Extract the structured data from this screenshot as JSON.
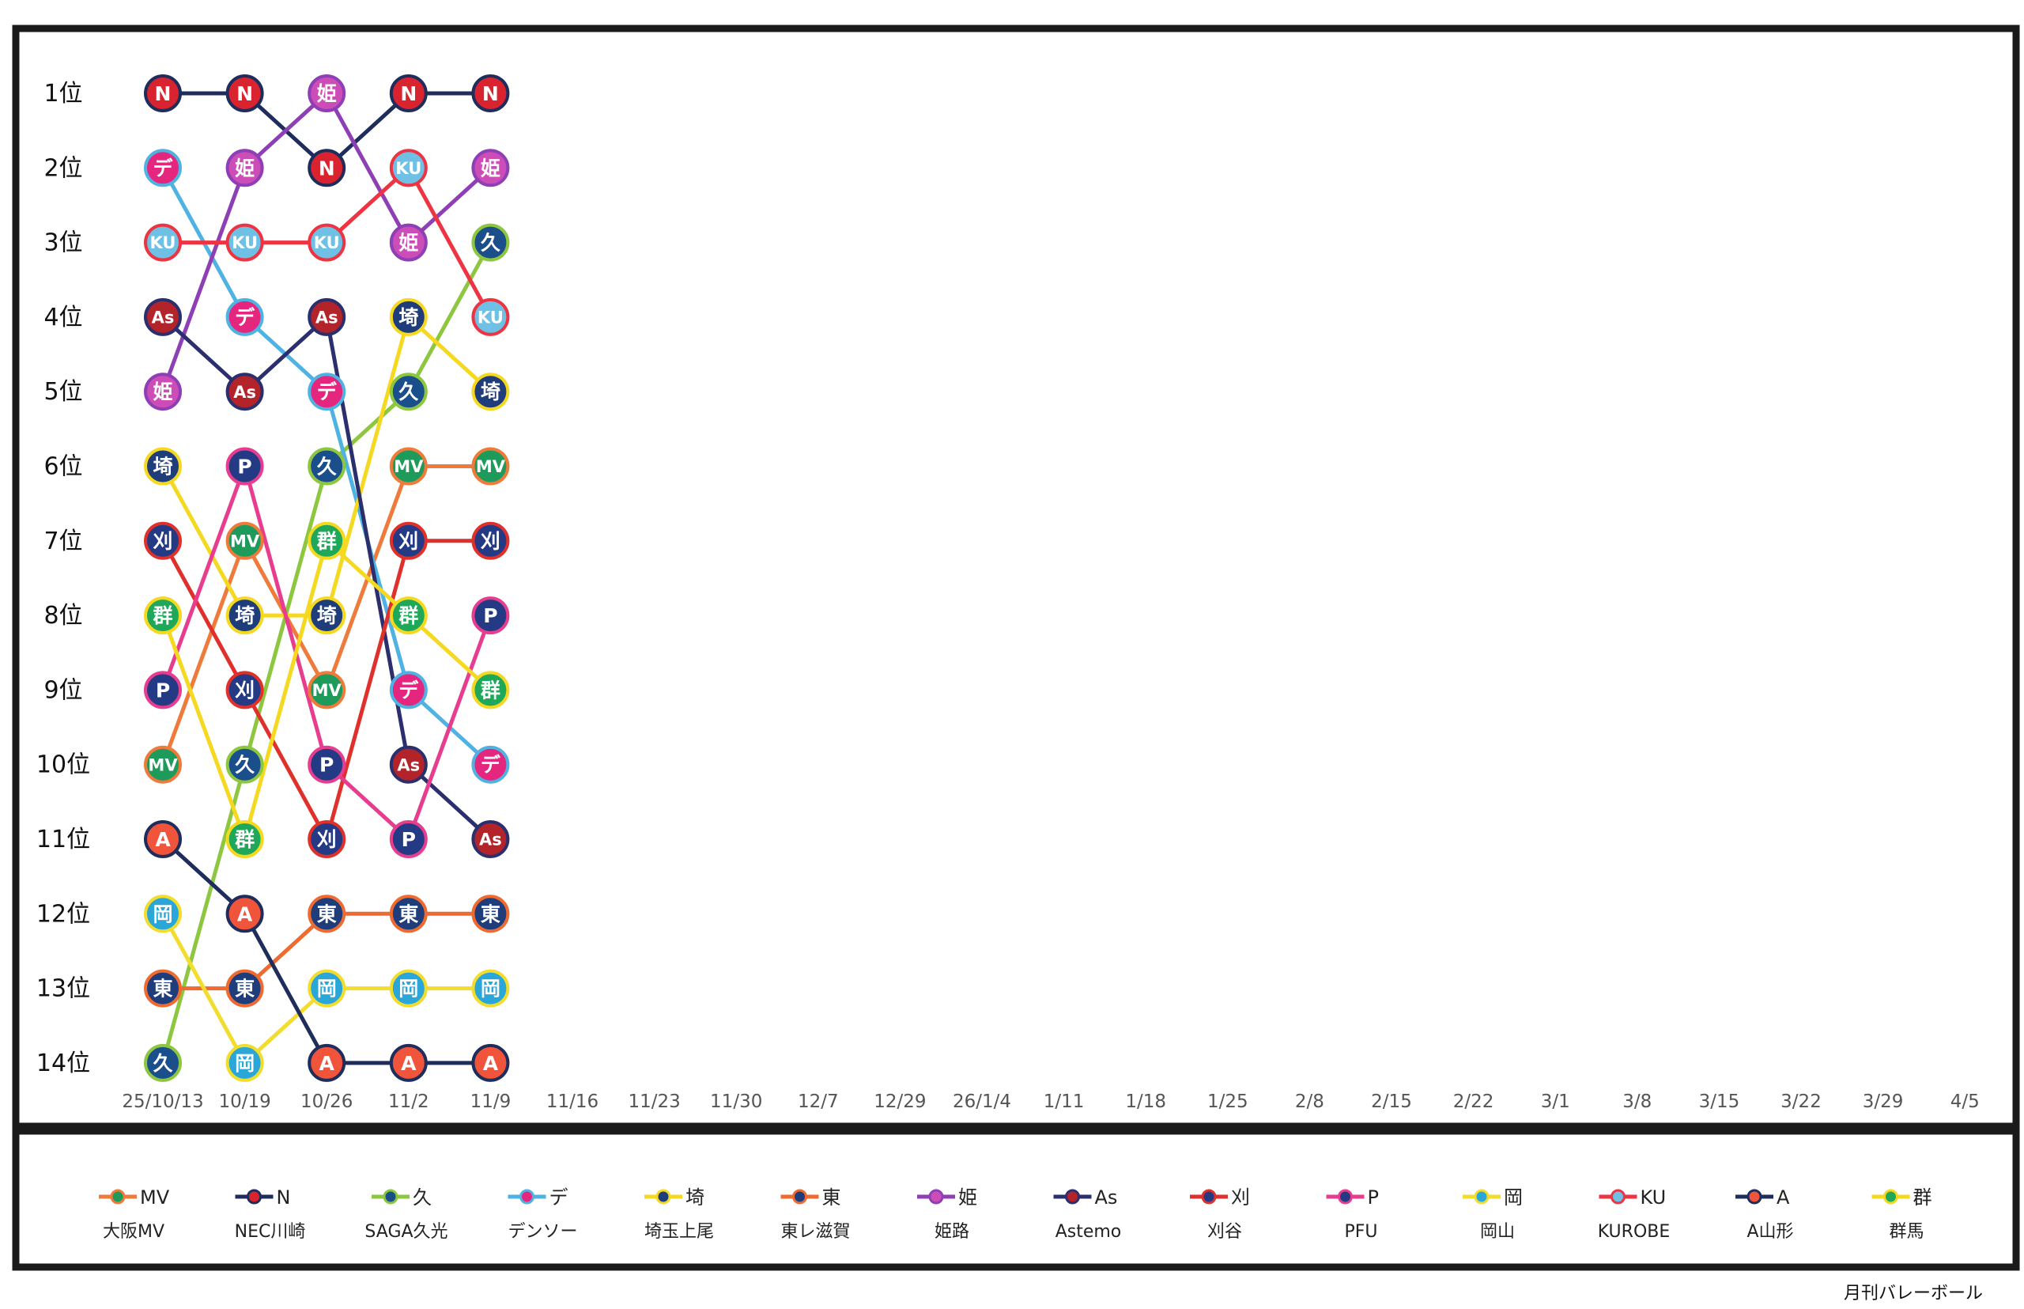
{
  "credit": "月刊バレーボール",
  "rank_labels": [
    "1位",
    "2位",
    "3位",
    "4位",
    "5位",
    "6位",
    "7位",
    "8位",
    "9位",
    "10位",
    "11位",
    "12位",
    "13位",
    "14位"
  ],
  "dates": [
    "25/10/13",
    "10/19",
    "10/26",
    "11/2",
    "11/9",
    "11/16",
    "11/23",
    "11/30",
    "12/7",
    "12/29",
    "26/1/4",
    "1/11",
    "1/18",
    "1/25",
    "2/8",
    "2/15",
    "2/22",
    "3/1",
    "3/8",
    "3/15",
    "3/22",
    "3/29",
    "4/5"
  ],
  "chart_data": {
    "type": "line",
    "subtype": "bump",
    "x_categories": [
      "25/10/13",
      "10/19",
      "10/26",
      "11/2",
      "11/9",
      "11/16",
      "11/23",
      "11/30",
      "12/7",
      "12/29",
      "26/1/4",
      "1/11",
      "1/18",
      "1/25",
      "2/8",
      "2/15",
      "2/22",
      "3/1",
      "3/8",
      "3/15",
      "3/22",
      "3/29",
      "4/5"
    ],
    "y_axis": "rank",
    "y_range": [
      1,
      14
    ],
    "y_reversed": true,
    "legend_position": "bottom",
    "series": [
      {
        "key": "MV",
        "name": "大阪MV",
        "line_color": "#EE7A3B",
        "node_color": "#1E9A5A",
        "ranks": [
          10,
          7,
          9,
          6,
          6
        ]
      },
      {
        "key": "N",
        "name": "NEC川崎",
        "line_color": "#1F2D5C",
        "node_color": "#D9232F",
        "ranks": [
          1,
          1,
          2,
          1,
          1
        ]
      },
      {
        "key": "久",
        "name": "SAGA久光",
        "line_color": "#8DC63F",
        "node_color": "#1A4F8B",
        "ranks": [
          14,
          10,
          6,
          5,
          3
        ]
      },
      {
        "key": "デ",
        "name": "デンソー",
        "line_color": "#4EB3E3",
        "node_color": "#E4267F",
        "ranks": [
          2,
          4,
          5,
          9,
          10
        ]
      },
      {
        "key": "埼",
        "name": "埼玉上尾",
        "line_color": "#F5D820",
        "node_color": "#1F3D7A",
        "ranks": [
          6,
          8,
          8,
          4,
          5
        ]
      },
      {
        "key": "東",
        "name": "東レ滋賀",
        "line_color": "#EE6A30",
        "node_color": "#1F3D7A",
        "ranks": [
          13,
          13,
          12,
          12,
          12
        ]
      },
      {
        "key": "姫",
        "name": "姫路",
        "line_color": "#8E3FB5",
        "node_color": "#CC4DB8",
        "ranks": [
          5,
          2,
          1,
          3,
          2
        ]
      },
      {
        "key": "As",
        "name": "Astemo",
        "line_color": "#2B2F6E",
        "node_color": "#B3232A",
        "ranks": [
          4,
          5,
          4,
          10,
          11
        ]
      },
      {
        "key": "刈",
        "name": "刈谷",
        "line_color": "#E0302B",
        "node_color": "#243A85",
        "ranks": [
          7,
          9,
          11,
          7,
          7
        ]
      },
      {
        "key": "P",
        "name": "PFU",
        "line_color": "#E83C8E",
        "node_color": "#243A85",
        "ranks": [
          9,
          6,
          10,
          11,
          8
        ]
      },
      {
        "key": "岡",
        "name": "岡山",
        "line_color": "#F2DD2E",
        "node_color": "#2AA6D9",
        "ranks": [
          12,
          14,
          13,
          13,
          13
        ]
      },
      {
        "key": "KU",
        "name": "KUROBE",
        "line_color": "#EE3342",
        "node_color": "#6EC1E4",
        "ranks": [
          3,
          3,
          3,
          2,
          4
        ]
      },
      {
        "key": "A",
        "name": "A山形",
        "line_color": "#1F2D5C",
        "node_color": "#F0543A",
        "ranks": [
          11,
          12,
          14,
          14,
          14
        ]
      },
      {
        "key": "群",
        "name": "群馬",
        "line_color": "#F5D820",
        "node_color": "#1FA85A",
        "ranks": [
          8,
          11,
          7,
          8,
          9
        ]
      }
    ]
  }
}
